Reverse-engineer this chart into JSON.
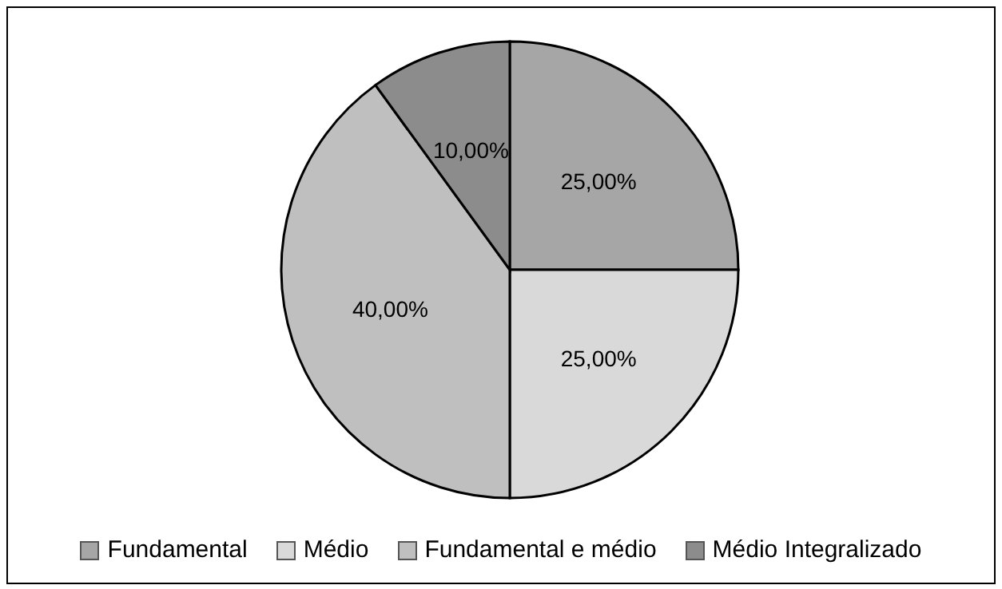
{
  "chart_data": {
    "type": "pie",
    "categories": [
      "Fundamental",
      "Médio",
      "Fundamental e médio",
      "Médio Integralizado"
    ],
    "values": [
      25,
      25,
      40,
      10
    ],
    "colors": [
      "#a6a6a6",
      "#d9d9d9",
      "#bfbfbf",
      "#8c8c8c"
    ],
    "value_labels": [
      "25,00%",
      "25,00%",
      "40,00%",
      "10,00%"
    ],
    "legend": "bottom"
  }
}
